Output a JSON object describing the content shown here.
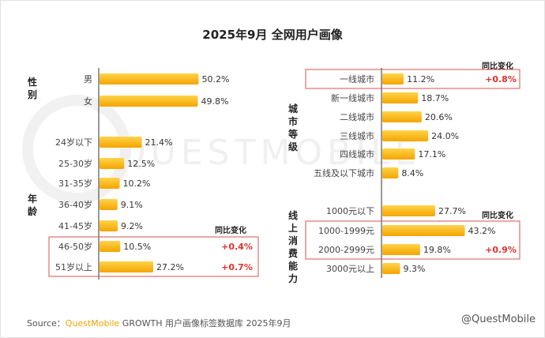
{
  "title": "2025年9月 全网用户画像",
  "background_watermark": "QUESTMOBILE",
  "change_header": "同比变化",
  "source": {
    "prefix": "Source：",
    "brand": "QuestMobile",
    "rest": " GROWTH 用户画像标签数据库 2025年9月"
  },
  "watermark": "@QuestMobile",
  "colors": {
    "bar_top": "#ffd44a",
    "bar_bottom": "#f5a400",
    "highlight_border": "#d9534f",
    "change_text": "#e0312b",
    "axis": "#333333"
  },
  "chart_data": [
    {
      "type": "bar",
      "orientation": "horizontal",
      "groups": [
        {
          "label": "性别",
          "categories": [
            "男",
            "女"
          ],
          "values": [
            50.2,
            49.8
          ],
          "value_labels": [
            "50.2%",
            "49.8%"
          ]
        },
        {
          "label": "年龄",
          "categories": [
            "24岁以下",
            "25-30岁",
            "31-35岁",
            "36-40岁",
            "41-45岁",
            "46-50岁",
            "51岁以上"
          ],
          "values": [
            21.4,
            12.5,
            10.2,
            9.1,
            9.2,
            10.5,
            27.2
          ],
          "value_labels": [
            "21.4%",
            "12.5%",
            "10.2%",
            "9.1%",
            "9.2%",
            "10.5%",
            "27.2%"
          ],
          "changes": [
            null,
            null,
            null,
            null,
            null,
            "+0.4%",
            "+0.7%"
          ],
          "highlighted": [
            false,
            false,
            false,
            false,
            false,
            true,
            true
          ]
        }
      ]
    },
    {
      "type": "bar",
      "orientation": "horizontal",
      "groups": [
        {
          "label": "城市等级",
          "categories": [
            "一线城市",
            "新一线城市",
            "二线城市",
            "三线城市",
            "四线城市",
            "五线及以下城市"
          ],
          "values": [
            11.2,
            18.7,
            20.6,
            24.0,
            17.1,
            8.4
          ],
          "value_labels": [
            "11.2%",
            "18.7%",
            "20.6%",
            "24.0%",
            "17.1%",
            "8.4%"
          ],
          "changes": [
            "+0.8%",
            null,
            null,
            null,
            null,
            null
          ],
          "highlighted": [
            true,
            false,
            false,
            false,
            false,
            false
          ]
        },
        {
          "label": "线上消费能力",
          "categories": [
            "1000元以下",
            "1000-1999元",
            "2000-2999元",
            "3000元以上"
          ],
          "values": [
            27.7,
            43.2,
            19.8,
            9.3
          ],
          "value_labels": [
            "27.7%",
            "43.2%",
            "19.8%",
            "9.3%"
          ],
          "changes": [
            null,
            null,
            "+0.9%",
            null
          ],
          "highlighted": [
            false,
            true,
            true,
            false
          ]
        }
      ]
    }
  ]
}
